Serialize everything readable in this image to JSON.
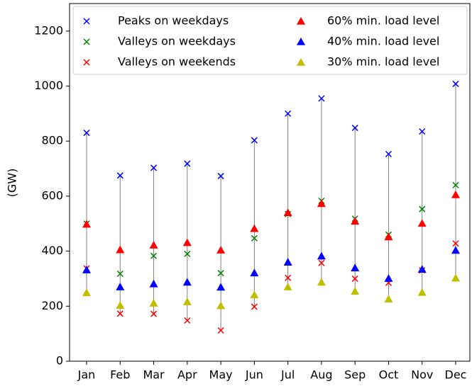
{
  "chart_data": {
    "type": "scatter",
    "y_label": "(GW)",
    "categories": [
      "Jan",
      "Feb",
      "Mar",
      "Apr",
      "May",
      "Jun",
      "Jul",
      "Aug",
      "Sep",
      "Oct",
      "Nov",
      "Dec"
    ],
    "ylim": [
      0,
      1300
    ],
    "yticks": [
      0,
      200,
      400,
      600,
      800,
      1000,
      1200
    ],
    "legend": "upper center",
    "range_line_color": "#808080",
    "series": [
      {
        "name": "Peaks on weekdays",
        "color": "#0000ff",
        "marker": "x",
        "values": [
          830,
          675,
          703,
          718,
          673,
          803,
          900,
          955,
          848,
          753,
          835,
          1008
        ]
      },
      {
        "name": "Valleys on weekdays",
        "color": "#008000",
        "marker": "x",
        "values": [
          500,
          318,
          383,
          390,
          320,
          447,
          535,
          583,
          518,
          460,
          553,
          640
        ]
      },
      {
        "name": "Valleys on weekends",
        "color": "#ff0000",
        "marker": "x",
        "values": [
          337,
          173,
          172,
          148,
          112,
          198,
          303,
          357,
          300,
          285,
          330,
          428
        ]
      },
      {
        "name": "60% min. load level",
        "color": "#ff0000",
        "marker": "triangle",
        "values": [
          498,
          405,
          422,
          431,
          404,
          482,
          540,
          573,
          509,
          452,
          501,
          605
        ]
      },
      {
        "name": "40% min. load level",
        "color": "#0000ff",
        "marker": "triangle",
        "values": [
          332,
          270,
          281,
          287,
          269,
          321,
          360,
          382,
          339,
          301,
          334,
          403
        ]
      },
      {
        "name": "30% min. load level",
        "color": "#bfbf00",
        "marker": "triangle",
        "values": [
          249,
          203,
          211,
          216,
          202,
          241,
          270,
          287,
          254,
          226,
          250,
          302
        ]
      }
    ]
  }
}
